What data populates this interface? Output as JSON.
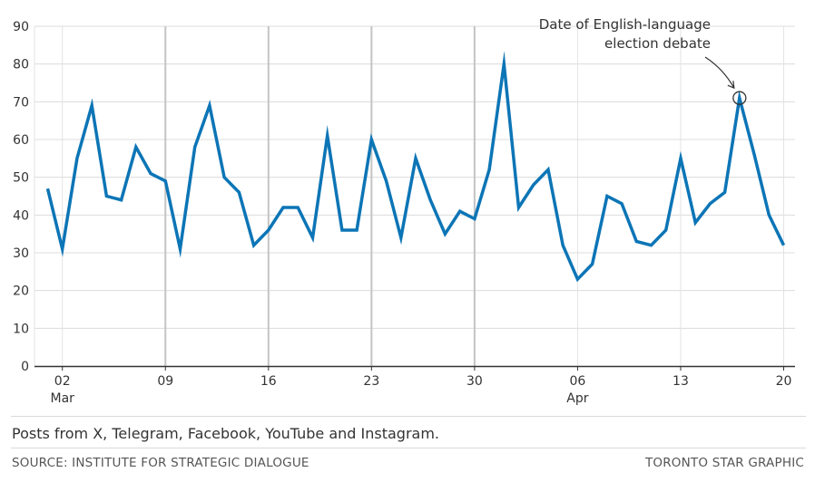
{
  "chart_data": {
    "type": "line",
    "ylim": [
      0,
      90
    ],
    "yticks": [
      0,
      10,
      20,
      30,
      40,
      50,
      60,
      70,
      80,
      90
    ],
    "grid": true,
    "x_start_label": "Mar 01",
    "x": [
      "Mar 01",
      "Mar 02",
      "Mar 03",
      "Mar 04",
      "Mar 05",
      "Mar 06",
      "Mar 07",
      "Mar 08",
      "Mar 09",
      "Mar 10",
      "Mar 11",
      "Mar 12",
      "Mar 13",
      "Mar 14",
      "Mar 15",
      "Mar 16",
      "Mar 17",
      "Mar 18",
      "Mar 19",
      "Mar 20",
      "Mar 21",
      "Mar 22",
      "Mar 23",
      "Mar 24",
      "Mar 25",
      "Mar 26",
      "Mar 27",
      "Mar 28",
      "Mar 29",
      "Mar 30",
      "Mar 31",
      "Apr 01",
      "Apr 02",
      "Apr 03",
      "Apr 04",
      "Apr 05",
      "Apr 06",
      "Apr 07",
      "Apr 08",
      "Apr 09",
      "Apr 10",
      "Apr 11",
      "Apr 12",
      "Apr 13",
      "Apr 14",
      "Apr 15",
      "Apr 16",
      "Apr 17",
      "Apr 18",
      "Apr 19",
      "Apr 20"
    ],
    "series": [
      {
        "color": "#0c75b6",
        "values": [
          47,
          31,
          55,
          69,
          45,
          44,
          58,
          51,
          49,
          31,
          58,
          69,
          50,
          46,
          32,
          36,
          42,
          42,
          34,
          61,
          36,
          36,
          60,
          49,
          34,
          55,
          44,
          35,
          41,
          39,
          52,
          80,
          42,
          48,
          52,
          32,
          23,
          27,
          45,
          43,
          33,
          32,
          36,
          55,
          38,
          43,
          46,
          71,
          56,
          40,
          32
        ]
      }
    ],
    "xticks": [
      {
        "index": 1,
        "label": "02",
        "sublabel": "Mar"
      },
      {
        "index": 8,
        "label": "09",
        "sublabel": ""
      },
      {
        "index": 15,
        "label": "16",
        "sublabel": ""
      },
      {
        "index": 22,
        "label": "23",
        "sublabel": ""
      },
      {
        "index": 29,
        "label": "30",
        "sublabel": ""
      },
      {
        "index": 36,
        "label": "06",
        "sublabel": "Apr"
      },
      {
        "index": 43,
        "label": "13",
        "sublabel": ""
      },
      {
        "index": 50,
        "label": "20",
        "sublabel": ""
      }
    ],
    "week_dividers": [
      "Mar 09",
      "Mar 16",
      "Mar 23",
      "Mar 30"
    ],
    "annotation": {
      "text_line1": "Date of English-language",
      "text_line2": "election debate",
      "x": "Apr 17",
      "y": 71
    }
  },
  "footer": {
    "note": "Posts from X, Telegram, Facebook, YouTube and Instagram.",
    "source": "SOURCE: INSTITUTE FOR STRATEGIC DIALOGUE",
    "credit": "TORONTO STAR GRAPHIC"
  }
}
